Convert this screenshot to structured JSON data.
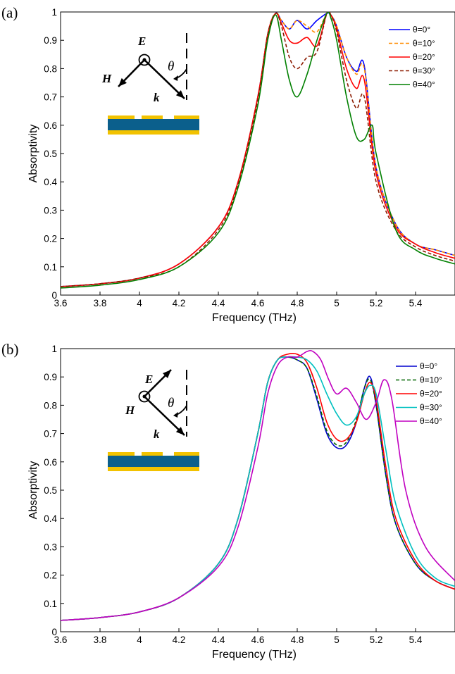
{
  "chart_data": [
    {
      "panel_label": "(a)",
      "type": "line",
      "xlabel": "Frequency (THz)",
      "ylabel": "Absorptivity",
      "xlim": [
        3.6,
        5.6
      ],
      "ylim": [
        0,
        1
      ],
      "xticks": [
        "3.6",
        "3.8",
        "4",
        "4.2",
        "4.4",
        "4.6",
        "4.8",
        "5",
        "5.2",
        "5.4"
      ],
      "yticks": [
        "0",
        "0.1",
        "0.2",
        "0.3",
        "0.4",
        "0.5",
        "0.6",
        "0.7",
        "0.8",
        "0.9",
        "1"
      ],
      "legend_position": "top-right",
      "inset": {
        "field1": "E",
        "field2": "H",
        "wavevector": "k",
        "angle": "θ",
        "dot_on": "E"
      },
      "series": [
        {
          "name": "θ=0°",
          "color": "#0000ff",
          "dash": "solid",
          "x": [
            3.6,
            3.8,
            4.0,
            4.2,
            4.4,
            4.5,
            4.6,
            4.65,
            4.69,
            4.72,
            4.76,
            4.8,
            4.85,
            4.9,
            4.95,
            4.97,
            5.0,
            5.05,
            5.1,
            5.14,
            5.2,
            5.3,
            5.4,
            5.5,
            5.6
          ],
          "y": [
            0.03,
            0.04,
            0.06,
            0.11,
            0.24,
            0.4,
            0.7,
            0.92,
            0.995,
            0.97,
            0.94,
            0.97,
            0.94,
            0.97,
            0.995,
            0.99,
            0.95,
            0.84,
            0.79,
            0.81,
            0.45,
            0.25,
            0.18,
            0.16,
            0.14
          ]
        },
        {
          "name": "θ=10°",
          "color": "#ff8c00",
          "dash": "dashed",
          "x": [
            3.6,
            3.8,
            4.0,
            4.2,
            4.4,
            4.5,
            4.6,
            4.65,
            4.69,
            4.72,
            4.76,
            4.8,
            4.85,
            4.9,
            4.95,
            4.97,
            5.0,
            5.05,
            5.1,
            5.14,
            5.2,
            5.3,
            5.4,
            5.5,
            5.6
          ],
          "y": [
            0.03,
            0.04,
            0.06,
            0.11,
            0.24,
            0.4,
            0.7,
            0.92,
            0.995,
            0.97,
            0.94,
            0.97,
            0.95,
            0.93,
            0.995,
            0.99,
            0.95,
            0.84,
            0.78,
            0.8,
            0.45,
            0.25,
            0.18,
            0.16,
            0.14
          ]
        },
        {
          "name": "θ=20°",
          "color": "#ff0000",
          "dash": "solid",
          "x": [
            3.6,
            3.8,
            4.0,
            4.2,
            4.4,
            4.5,
            4.6,
            4.65,
            4.69,
            4.72,
            4.76,
            4.8,
            4.85,
            4.9,
            4.95,
            4.97,
            5.0,
            5.05,
            5.1,
            5.14,
            5.2,
            5.3,
            5.4,
            5.5,
            5.6
          ],
          "y": [
            0.03,
            0.04,
            0.06,
            0.11,
            0.24,
            0.4,
            0.7,
            0.92,
            0.995,
            0.96,
            0.9,
            0.89,
            0.91,
            0.88,
            0.995,
            0.99,
            0.94,
            0.8,
            0.73,
            0.76,
            0.43,
            0.24,
            0.18,
            0.15,
            0.13
          ]
        },
        {
          "name": "θ=30°",
          "color": "#8b1a00",
          "dash": "dashed",
          "x": [
            3.6,
            3.8,
            4.0,
            4.2,
            4.4,
            4.5,
            4.6,
            4.65,
            4.69,
            4.72,
            4.76,
            4.8,
            4.85,
            4.9,
            4.95,
            4.97,
            5.0,
            5.05,
            5.1,
            5.14,
            5.2,
            5.3,
            5.4,
            5.5,
            5.6
          ],
          "y": [
            0.03,
            0.04,
            0.06,
            0.1,
            0.23,
            0.39,
            0.69,
            0.92,
            0.995,
            0.95,
            0.84,
            0.8,
            0.84,
            0.86,
            0.995,
            0.99,
            0.93,
            0.76,
            0.66,
            0.7,
            0.4,
            0.23,
            0.17,
            0.14,
            0.12
          ]
        },
        {
          "name": "θ=40°",
          "color": "#008000",
          "dash": "solid",
          "x": [
            3.6,
            3.8,
            4.0,
            4.2,
            4.4,
            4.5,
            4.6,
            4.65,
            4.69,
            4.72,
            4.76,
            4.8,
            4.85,
            4.9,
            4.95,
            4.97,
            5.0,
            5.05,
            5.1,
            5.14,
            5.18,
            5.2,
            5.3,
            5.4,
            5.5,
            5.6
          ],
          "y": [
            0.025,
            0.035,
            0.055,
            0.1,
            0.22,
            0.38,
            0.67,
            0.9,
            0.99,
            0.9,
            0.76,
            0.7,
            0.78,
            0.9,
            0.995,
            0.98,
            0.9,
            0.7,
            0.56,
            0.55,
            0.6,
            0.5,
            0.23,
            0.16,
            0.13,
            0.11
          ]
        }
      ]
    },
    {
      "panel_label": "(b)",
      "type": "line",
      "xlabel": "Frequency (THz)",
      "ylabel": "Absorptivity",
      "xlim": [
        3.6,
        5.6
      ],
      "ylim": [
        0,
        1
      ],
      "xticks": [
        "3.6",
        "3.8",
        "4",
        "4.2",
        "4.4",
        "4.6",
        "4.8",
        "5",
        "5.2",
        "5.4"
      ],
      "yticks": [
        "0",
        "0.1",
        "0.2",
        "0.3",
        "0.4",
        "0.5",
        "0.6",
        "0.7",
        "0.8",
        "0.9",
        "1"
      ],
      "legend_position": "top-right",
      "inset": {
        "field1": "E",
        "field2": "H",
        "wavevector": "k",
        "angle": "θ",
        "dot_on": "H"
      },
      "series": [
        {
          "name": "θ=0°",
          "color": "#0000cd",
          "dash": "solid",
          "x": [
            3.6,
            3.8,
            4.0,
            4.2,
            4.4,
            4.5,
            4.6,
            4.65,
            4.7,
            4.75,
            4.8,
            4.85,
            4.9,
            4.95,
            5.0,
            5.05,
            5.1,
            5.14,
            5.17,
            5.2,
            5.25,
            5.3,
            5.4,
            5.5,
            5.6
          ],
          "y": [
            0.04,
            0.05,
            0.07,
            0.12,
            0.24,
            0.4,
            0.7,
            0.88,
            0.96,
            0.97,
            0.96,
            0.93,
            0.82,
            0.7,
            0.65,
            0.66,
            0.74,
            0.86,
            0.9,
            0.8,
            0.55,
            0.38,
            0.24,
            0.18,
            0.15
          ]
        },
        {
          "name": "θ=10°",
          "color": "#006400",
          "dash": "dashed",
          "x": [
            3.6,
            3.8,
            4.0,
            4.2,
            4.4,
            4.5,
            4.6,
            4.65,
            4.7,
            4.75,
            4.8,
            4.85,
            4.9,
            4.95,
            5.0,
            5.05,
            5.1,
            5.14,
            5.17,
            5.2,
            5.25,
            5.3,
            5.4,
            5.5,
            5.6
          ],
          "y": [
            0.04,
            0.05,
            0.07,
            0.12,
            0.24,
            0.4,
            0.7,
            0.88,
            0.96,
            0.97,
            0.96,
            0.93,
            0.83,
            0.71,
            0.66,
            0.67,
            0.75,
            0.86,
            0.89,
            0.8,
            0.55,
            0.38,
            0.24,
            0.18,
            0.15
          ]
        },
        {
          "name": "θ=20°",
          "color": "#ff0000",
          "dash": "solid",
          "x": [
            3.6,
            3.8,
            4.0,
            4.2,
            4.4,
            4.5,
            4.6,
            4.65,
            4.7,
            4.75,
            4.8,
            4.85,
            4.9,
            4.95,
            5.0,
            5.05,
            5.1,
            5.14,
            5.17,
            5.2,
            5.25,
            5.3,
            5.4,
            5.5,
            5.6
          ],
          "y": [
            0.04,
            0.05,
            0.07,
            0.12,
            0.24,
            0.4,
            0.7,
            0.88,
            0.96,
            0.98,
            0.98,
            0.95,
            0.86,
            0.74,
            0.68,
            0.68,
            0.74,
            0.84,
            0.88,
            0.82,
            0.58,
            0.4,
            0.25,
            0.18,
            0.15
          ]
        },
        {
          "name": "θ=30°",
          "color": "#00c0c0",
          "dash": "solid",
          "x": [
            3.6,
            3.8,
            4.0,
            4.2,
            4.4,
            4.5,
            4.6,
            4.65,
            4.7,
            4.75,
            4.8,
            4.85,
            4.9,
            4.95,
            5.0,
            5.05,
            5.1,
            5.14,
            5.17,
            5.2,
            5.25,
            5.3,
            5.4,
            5.5,
            5.6
          ],
          "y": [
            0.04,
            0.05,
            0.07,
            0.12,
            0.24,
            0.4,
            0.7,
            0.88,
            0.96,
            0.97,
            0.97,
            0.96,
            0.92,
            0.84,
            0.77,
            0.73,
            0.76,
            0.84,
            0.87,
            0.84,
            0.64,
            0.45,
            0.27,
            0.19,
            0.16
          ]
        },
        {
          "name": "θ=40°",
          "color": "#c000c0",
          "dash": "solid",
          "x": [
            3.6,
            3.8,
            4.0,
            4.2,
            4.4,
            4.5,
            4.6,
            4.65,
            4.7,
            4.75,
            4.8,
            4.85,
            4.88,
            4.92,
            4.96,
            5.0,
            5.05,
            5.1,
            5.15,
            5.2,
            5.24,
            5.28,
            5.35,
            5.45,
            5.6
          ],
          "y": [
            0.04,
            0.05,
            0.07,
            0.12,
            0.23,
            0.37,
            0.65,
            0.84,
            0.94,
            0.97,
            0.97,
            0.99,
            0.99,
            0.96,
            0.89,
            0.84,
            0.86,
            0.81,
            0.75,
            0.81,
            0.89,
            0.82,
            0.5,
            0.3,
            0.18
          ]
        }
      ]
    }
  ]
}
